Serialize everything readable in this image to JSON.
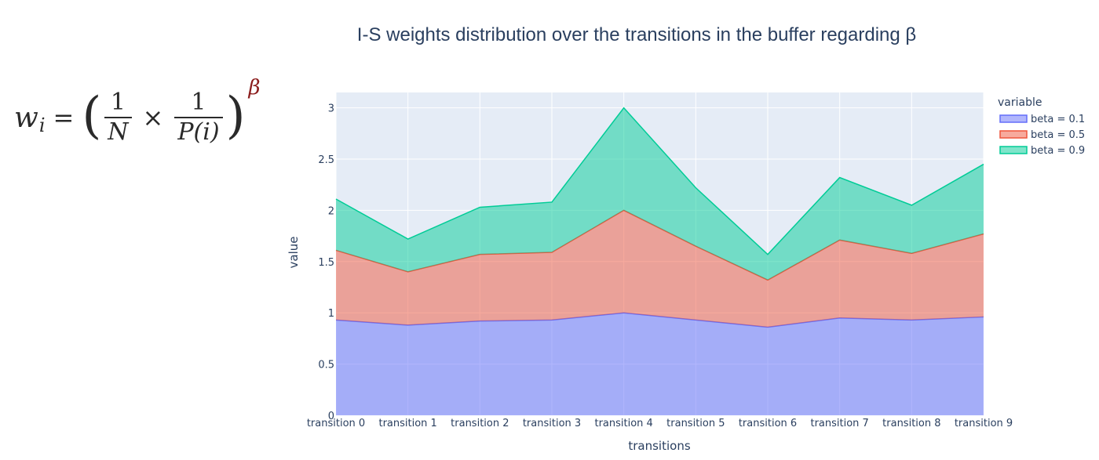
{
  "formula": {
    "lhs_var": "w",
    "lhs_sub": "i",
    "equals": "=",
    "frac1_num": "1",
    "frac1_den": "N",
    "times": "×",
    "frac2_num": "1",
    "frac2_den": "P(i)",
    "exponent": "β",
    "exponent_color": "#8b1c1c"
  },
  "chart_data": {
    "type": "area",
    "stacked": true,
    "title": "I-S weights distribution over the transitions in the buffer regarding β",
    "xlabel": "transitions",
    "ylabel": "value",
    "categories": [
      "transition 0",
      "transition 1",
      "transition 2",
      "transition 3",
      "transition 4",
      "transition 5",
      "transition 6",
      "transition 7",
      "transition 8",
      "transition 9"
    ],
    "ylim": [
      0,
      3.15
    ],
    "yticks": [
      0,
      0.5,
      1,
      1.5,
      2,
      2.5,
      3
    ],
    "ytick_labels": [
      "0",
      "0.5",
      "1",
      "1.5",
      "2",
      "2.5",
      "3"
    ],
    "grid": true,
    "legend": {
      "title": "variable",
      "position": "top-right"
    },
    "plot_bgcolor": "#e5ecf6",
    "series": [
      {
        "name": "beta = 0.1",
        "color": "#636efa",
        "values": [
          0.93,
          0.88,
          0.92,
          0.93,
          1.0,
          0.93,
          0.86,
          0.95,
          0.93,
          0.96
        ]
      },
      {
        "name": "beta = 0.5",
        "color": "#ef553b",
        "values": [
          0.68,
          0.52,
          0.65,
          0.66,
          1.0,
          0.72,
          0.46,
          0.76,
          0.65,
          0.81
        ]
      },
      {
        "name": "beta = 0.9",
        "color": "#00cc96",
        "values": [
          0.5,
          0.32,
          0.46,
          0.49,
          1.0,
          0.57,
          0.25,
          0.61,
          0.47,
          0.68
        ]
      }
    ]
  }
}
